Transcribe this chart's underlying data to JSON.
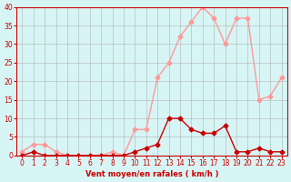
{
  "xlabel": "Vent moyen/en rafales ( km/h )",
  "x": [
    0,
    1,
    2,
    3,
    4,
    5,
    6,
    7,
    8,
    9,
    10,
    11,
    12,
    13,
    14,
    15,
    16,
    17,
    18,
    19,
    20,
    21,
    22,
    23
  ],
  "y_moyen": [
    0,
    1,
    0,
    0,
    0,
    0,
    0,
    0,
    0,
    0,
    1,
    2,
    3,
    10,
    10,
    7,
    6,
    6,
    8,
    1,
    1,
    2,
    1,
    1
  ],
  "y_rafales": [
    1,
    3,
    3,
    1,
    0,
    0,
    0,
    0,
    1,
    0,
    7,
    7,
    21,
    25,
    32,
    36,
    40,
    37,
    30,
    37,
    37,
    15,
    16,
    21
  ],
  "color_moyen": "#cc0000",
  "color_rafales": "#ff9999",
  "background_color": "#d8f5f5",
  "grid_color": "#aaaaaa",
  "ylim": [
    0,
    40
  ],
  "xlim": [
    0,
    23
  ]
}
